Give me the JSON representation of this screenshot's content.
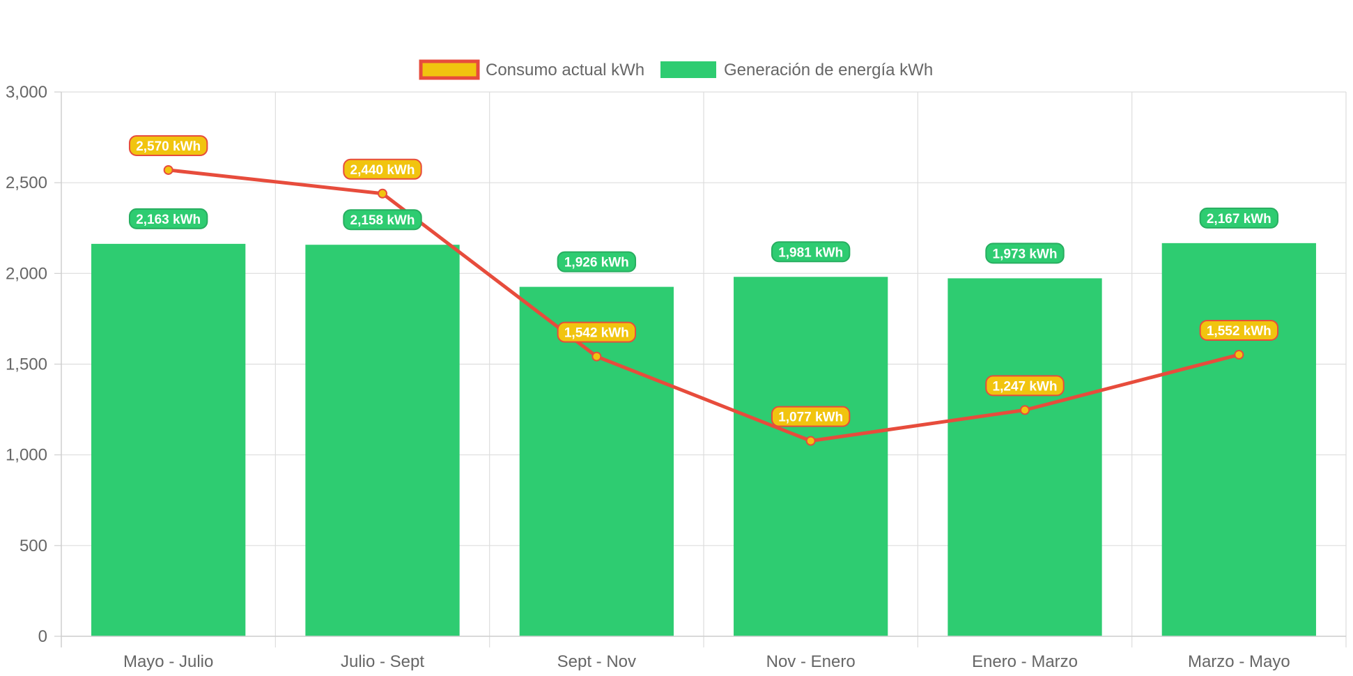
{
  "chart_data": {
    "type": "bar",
    "categories": [
      "Mayo - Julio",
      "Julio - Sept",
      "Sept - Nov",
      "Nov - Enero",
      "Enero - Marzo",
      "Marzo - Mayo"
    ],
    "series": [
      {
        "name": "Consumo actual kWh",
        "type": "line",
        "values": [
          2570,
          2440,
          1542,
          1077,
          1247,
          1552
        ],
        "labels": [
          "2,570 kWh",
          "2,440 kWh",
          "1,542 kWh",
          "1,077 kWh",
          "1,247 kWh",
          "1,552 kWh"
        ],
        "color": "#e74c3c",
        "fill": "#f1c40f"
      },
      {
        "name": "Generación de energía kWh",
        "type": "bar",
        "values": [
          2163,
          2158,
          1926,
          1981,
          1973,
          2167
        ],
        "labels": [
          "2,163 kWh",
          "2,158 kWh",
          "1,926 kWh",
          "1,981 kWh",
          "1,973 kWh",
          "2,167 kWh"
        ],
        "color": "#2ecc71",
        "border": "#27ae60"
      }
    ],
    "ylim": [
      0,
      3000
    ],
    "yticks": [
      0,
      500,
      1000,
      1500,
      2000,
      2500,
      3000
    ],
    "ytick_labels": [
      "0",
      "500",
      "1,000",
      "1,500",
      "2,000",
      "2,500",
      "3,000"
    ],
    "grid": true,
    "legend": "top-center"
  }
}
